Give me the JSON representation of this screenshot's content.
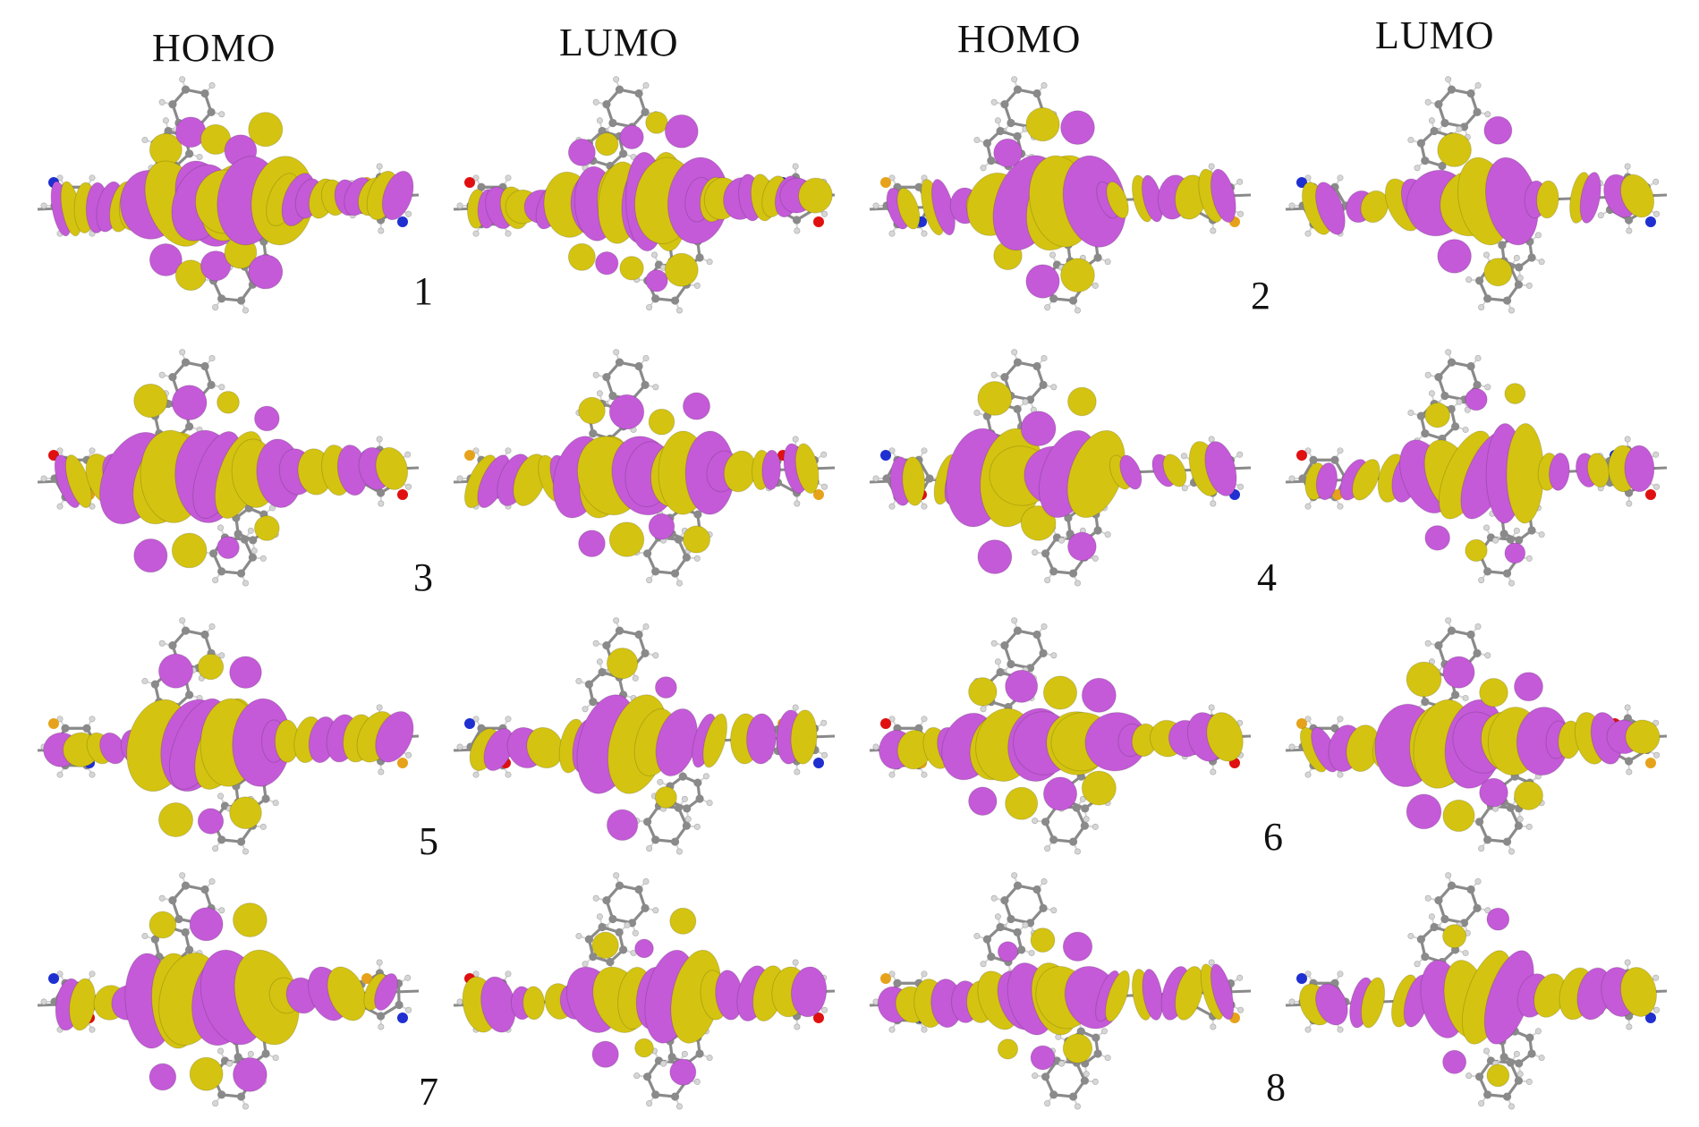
{
  "headers": [
    "HOMO",
    "LUMO",
    "HOMO",
    "LUMO"
  ],
  "molecule_numbers": [
    "1",
    "2",
    "3",
    "4",
    "5",
    "6",
    "7",
    "8"
  ],
  "colors": {
    "lobe_positive": "#c45ad8",
    "lobe_negative": "#d4c411",
    "carbon": "#8a8a8a",
    "hydrogen": "#d6d6d6",
    "nitrogen": "#1f2fd0",
    "oxygen": "#e01010",
    "sulfur": "#e6a21a",
    "background": "#ffffff"
  }
}
